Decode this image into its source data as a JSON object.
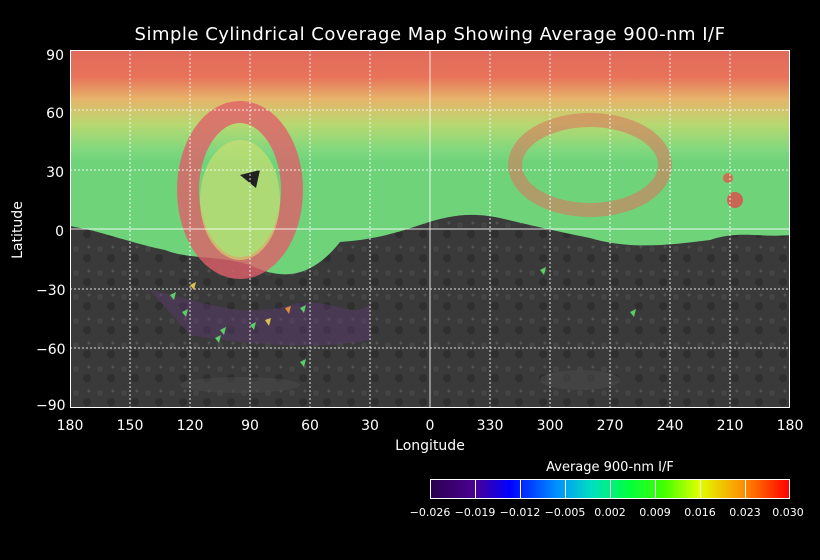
{
  "title": "Simple Cylindrical Coverage Map Showing Average 900-nm I/F",
  "axes": {
    "xlabel": "Longitude",
    "ylabel": "Latitude",
    "x_ticks": [
      "180",
      "150",
      "120",
      "90",
      "60",
      "30",
      "0",
      "330",
      "300",
      "270",
      "240",
      "210",
      "180"
    ],
    "y_ticks": [
      "90",
      "60",
      "30",
      "0",
      "−30",
      "−60",
      "−90"
    ]
  },
  "colorbar": {
    "title": "Average 900-nm I/F",
    "ticks": [
      "−0.026",
      "−0.019",
      "−0.012",
      "−0.005",
      "0.002",
      "0.009",
      "0.016",
      "0.023",
      "0.030"
    ],
    "colors": [
      "#2a0050",
      "#ff0000"
    ]
  },
  "map": {
    "description_bands": [
      "north-polar red",
      "mid-latitude yellow/green",
      "equatorial green",
      "southern grey basemap"
    ]
  }
}
